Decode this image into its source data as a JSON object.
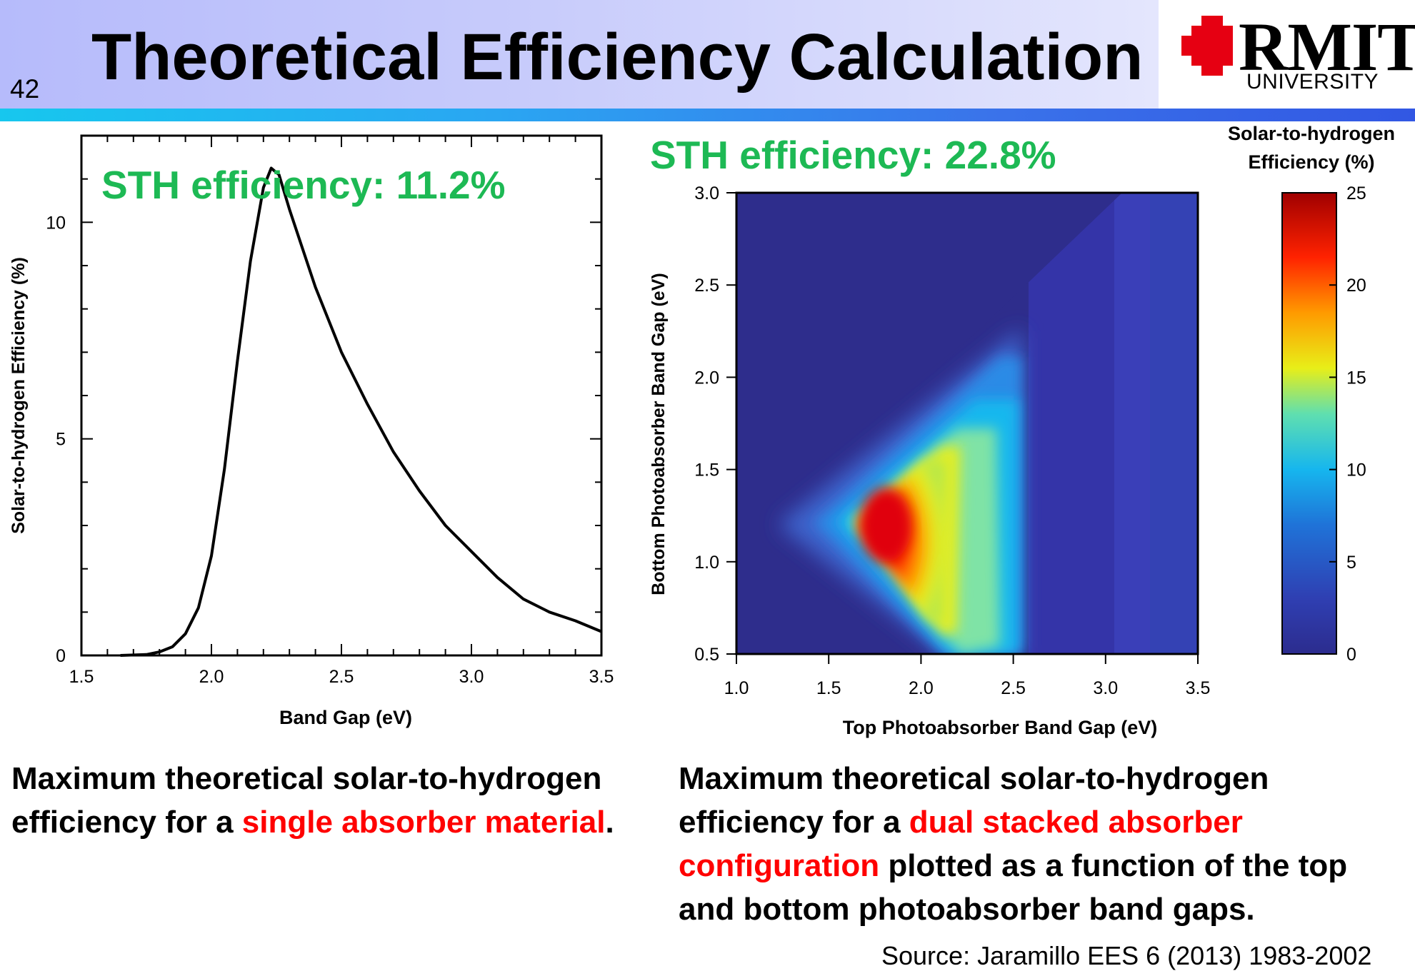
{
  "header": {
    "slide_number": "42",
    "title": "Theoretical Efficiency Calculation",
    "logo_wordmark": "RMIT",
    "logo_sub": "UNIVERSITY"
  },
  "colors": {
    "accent_green": "#1db954",
    "highlight_red": "#ff0000",
    "header_bg": "#bfc3fb",
    "stripe": "#2a8ff0"
  },
  "chart_data": [
    {
      "type": "line",
      "annotation": "STH efficiency: 11.2%",
      "xlabel": "Band Gap (eV)",
      "ylabel": "Solar-to-hydrogen Efficiency (%)",
      "xlim": [
        1.5,
        3.5
      ],
      "ylim": [
        0,
        12
      ],
      "xticks": [
        "1.5",
        "2.0",
        "2.5",
        "3.0",
        "3.5"
      ],
      "yticks": [
        "0",
        "5",
        "10"
      ],
      "x": [
        1.65,
        1.75,
        1.8,
        1.85,
        1.9,
        1.95,
        2.0,
        2.05,
        2.1,
        2.15,
        2.2,
        2.23,
        2.26,
        2.3,
        2.35,
        2.4,
        2.5,
        2.6,
        2.7,
        2.8,
        2.9,
        3.0,
        3.1,
        3.2,
        3.3,
        3.4,
        3.5
      ],
      "y": [
        0.0,
        0.02,
        0.08,
        0.2,
        0.5,
        1.1,
        2.3,
        4.3,
        6.8,
        9.1,
        10.8,
        11.25,
        11.1,
        10.3,
        9.4,
        8.5,
        7.0,
        5.8,
        4.7,
        3.8,
        3.0,
        2.4,
        1.8,
        1.3,
        1.0,
        0.8,
        0.55
      ],
      "grid": false
    },
    {
      "type": "heatmap",
      "annotation": "STH efficiency: 22.8%",
      "xlabel": "Top Photoabsorber Band Gap (eV)",
      "ylabel": "Bottom Photoabsorber Band Gap (eV)",
      "xlim": [
        1.0,
        3.5
      ],
      "ylim": [
        0.5,
        3.0
      ],
      "xticks": [
        "1.0",
        "1.5",
        "2.0",
        "2.5",
        "3.0",
        "3.5"
      ],
      "yticks": [
        "0.5",
        "1.0",
        "1.5",
        "2.0",
        "2.5",
        "3.0"
      ],
      "colorbar": {
        "title_line1": "Solar-to-hydrogen",
        "title_line2": "Efficiency (%)",
        "range": [
          0,
          25
        ],
        "ticks": [
          "25",
          "20",
          "15",
          "10",
          "5",
          "0"
        ]
      },
      "peak": {
        "x": 1.8,
        "y": 1.2,
        "value": 22.8
      },
      "grid": false
    }
  ],
  "captions": {
    "left": {
      "text1": "Maximum theoretical solar-to-hydrogen efficiency for a ",
      "highlight": "single absorber material",
      "text2": "."
    },
    "right": {
      "text1": "Maximum theoretical solar-to-hydrogen efficiency for a ",
      "highlight": "dual stacked absorber configuration",
      "text2": " plotted as a function of the top and bottom photoabsorber band gaps."
    }
  },
  "source": "Source: Jaramillo EES 6 (2013) 1983-2002"
}
